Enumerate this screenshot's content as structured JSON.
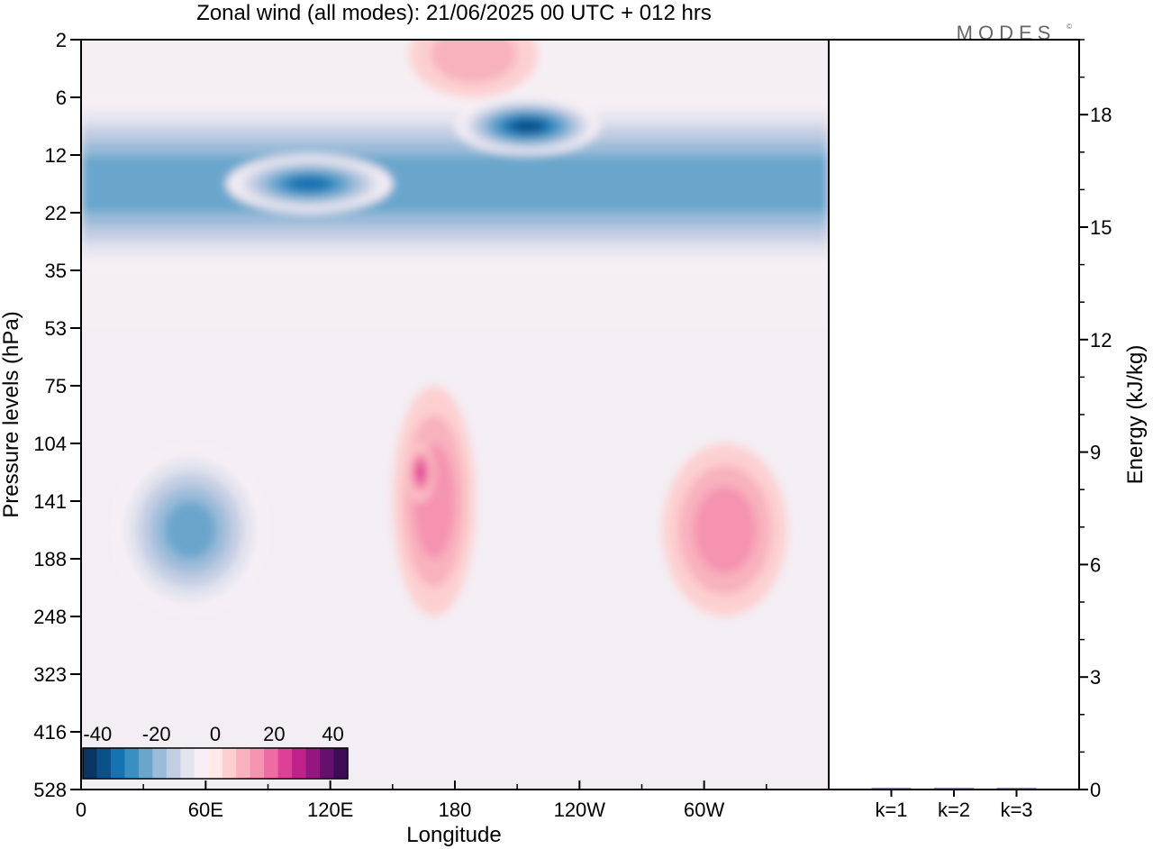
{
  "title": "Zonal wind (all modes):  21/06/2025  00 UTC  + 012 hrs",
  "logo": "MODES",
  "logo_mark": "©",
  "chart_data": [
    {
      "type": "heatmap",
      "title": "Zonal wind (all modes):  21/06/2025  00 UTC  + 012 hrs",
      "xlabel": "Longitude",
      "ylabel": "Pressure levels (hPa)",
      "x_ticks": [
        "0",
        "60E",
        "120E",
        "180",
        "120W",
        "60W"
      ],
      "x_tick_values": [
        0,
        60,
        120,
        180,
        240,
        300
      ],
      "xlim": [
        0,
        360
      ],
      "y_ticks": [
        "2",
        "6",
        "12",
        "22",
        "35",
        "53",
        "75",
        "104",
        "141",
        "188",
        "248",
        "323",
        "416",
        "528"
      ],
      "y_scale": "categorical-levels-top-to-bottom",
      "colorbar": {
        "ticks": [
          "-40",
          "-20",
          "0",
          "20",
          "40"
        ],
        "tick_values": [
          -40,
          -20,
          0,
          20,
          40
        ],
        "levels": [
          -45,
          -40,
          -35,
          -30,
          -25,
          -20,
          -15,
          -10,
          -5,
          0,
          5,
          10,
          15,
          20,
          25,
          30,
          35,
          40,
          45
        ],
        "colors": [
          "#0b3560",
          "#0a5189",
          "#1672b0",
          "#3a8fc2",
          "#6aa6cc",
          "#9bbcd9",
          "#c3cde3",
          "#e4e4ef",
          "#f7eff5",
          "#ffeae8",
          "#fdd0d0",
          "#f8b2bd",
          "#f593b0",
          "#ef6ba4",
          "#de3f97",
          "#c02289",
          "#95167e",
          "#64116e",
          "#3f0a56"
        ],
        "placement": "bottom-left-inset"
      },
      "features": [
        {
          "lon_range": [
            0,
            360
          ],
          "level_range": [
            "6",
            "35"
          ],
          "value": -25
        },
        {
          "lon_range": [
            70,
            150
          ],
          "level_range": [
            "12",
            "22"
          ],
          "value": -35
        },
        {
          "lon_range": [
            180,
            250
          ],
          "level_range": [
            "6",
            "12"
          ],
          "value": -40
        },
        {
          "lon_range": [
            15,
            90
          ],
          "level_range": [
            "104",
            "248"
          ],
          "value": -25
        },
        {
          "lon_range": [
            150,
            190
          ],
          "level_range": [
            "75",
            "248"
          ],
          "value": 12
        },
        {
          "lon_range": [
            157,
            170
          ],
          "level_range": [
            "104",
            "141"
          ],
          "value": 22
        },
        {
          "lon_range": [
            280,
            340
          ],
          "level_range": [
            "104",
            "248"
          ],
          "value": 12
        },
        {
          "lon_range": [
            158,
            220
          ],
          "level_range": [
            "1",
            "6"
          ],
          "value": 10
        }
      ]
    },
    {
      "type": "bar",
      "ylabel": "Energy (kJ/kg)",
      "categories": [
        "k=1",
        "k=2",
        "k=3"
      ],
      "values": [
        0.02,
        0.01,
        0.005
      ],
      "ylim": [
        0,
        20
      ],
      "y_ticks": [
        0,
        3,
        6,
        9,
        12,
        15,
        18
      ]
    }
  ]
}
